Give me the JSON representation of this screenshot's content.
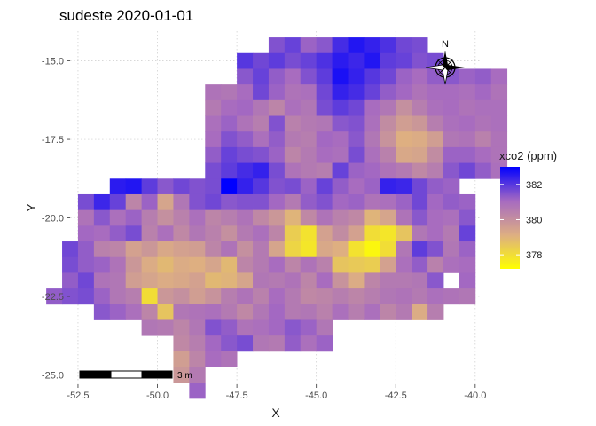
{
  "chart_data": {
    "type": "heatmap",
    "title": "sudeste 2020-01-01",
    "xlabel": "X",
    "ylabel": "Y",
    "xlim": [
      -52.75,
      -39.8
    ],
    "ylim": [
      -25.3,
      -14.05
    ],
    "x_ticks": [
      -52.5,
      -50.0,
      -47.5,
      -45.0,
      -42.5,
      -40.0
    ],
    "y_ticks": [
      -15.0,
      -17.5,
      -20.0,
      -22.5,
      -25.0
    ],
    "x_tick_labels": [
      "-52.5",
      "-50.0",
      "-47.5",
      "-45.0",
      "-42.5",
      "-40.0"
    ],
    "y_tick_labels": [
      "-15.0",
      "-17.5",
      "-20.0",
      "-22.5",
      "-25.0"
    ],
    "grid": true,
    "legend": {
      "title": "xco2 (ppm)",
      "position": "right",
      "ticks": [
        378,
        380,
        382
      ],
      "tick_labels": [
        "378",
        "380",
        "382"
      ],
      "range": [
        377.2,
        383.0
      ],
      "colors": [
        "#ffff00",
        "#ddae83",
        "#a66ac1",
        "#0000ff"
      ]
    },
    "cell_size": 0.5,
    "rows": [
      {
        "y": -14.5,
        "x0": -46.25,
        "values": [
          381.5,
          381.8,
          381.2,
          381.4,
          382.2,
          382.6,
          382.4,
          382.1,
          381.7,
          381.6
        ]
      },
      {
        "y": -15.0,
        "x0": -47.25,
        "values": [
          382.0,
          381.7,
          381.9,
          381.6,
          381.8,
          382.1,
          382.5,
          382.3,
          382.6,
          381.9,
          381.8,
          381.5,
          381.6
        ]
      },
      {
        "y": -15.5,
        "x0": -47.25,
        "values": [
          381.4,
          381.8,
          381.3,
          381.0,
          381.5,
          381.9,
          382.7,
          382.4,
          382.0,
          381.7,
          381.2,
          381.0,
          381.3,
          381.4,
          381.2,
          381.3,
          381.0
        ]
      },
      {
        "y": -16.0,
        "x0": -48.25,
        "values": [
          380.8,
          380.7,
          381.0,
          381.7,
          381.2,
          380.8,
          380.9,
          381.7,
          382.4,
          382.2,
          381.8,
          381.3,
          381.1,
          380.8,
          381.0,
          381.0,
          380.9,
          381.1,
          380.8
        ]
      },
      {
        "y": -16.5,
        "x0": -48.25,
        "values": [
          380.6,
          381.0,
          381.1,
          380.7,
          380.3,
          380.9,
          380.7,
          381.6,
          381.9,
          381.7,
          381.0,
          380.7,
          380.0,
          380.5,
          380.9,
          381.0,
          380.8,
          380.9,
          380.9
        ]
      },
      {
        "y": -17.0,
        "x0": -48.25,
        "values": [
          380.9,
          381.2,
          380.8,
          380.5,
          381.5,
          380.4,
          380.6,
          380.7,
          381.4,
          381.5,
          380.9,
          380.1,
          379.6,
          379.8,
          380.5,
          380.9,
          381.0,
          380.8,
          380.9
        ]
      },
      {
        "y": -17.5,
        "x0": -48.25,
        "values": [
          381.0,
          381.5,
          381.3,
          380.9,
          381.3,
          380.6,
          380.5,
          381.1,
          381.0,
          381.4,
          380.7,
          379.9,
          379.1,
          379.2,
          379.6,
          380.7,
          380.8,
          380.4,
          380.8
        ]
      },
      {
        "y": -18.0,
        "x0": -48.25,
        "values": [
          381.3,
          381.8,
          381.6,
          381.5,
          381.2,
          380.3,
          380.6,
          381.0,
          380.9,
          381.6,
          380.9,
          380.4,
          379.3,
          379.4,
          380.1,
          381.2,
          381.2,
          381.0,
          380.8
        ]
      },
      {
        "y": -18.5,
        "x0": -48.25,
        "values": [
          381.6,
          381.9,
          382.2,
          382.4,
          381.6,
          380.8,
          380.6,
          380.5,
          381.8,
          381.2,
          381.1,
          380.8,
          380.6,
          380.2,
          380.5,
          381.4,
          381.7,
          381.3,
          380.9
        ]
      },
      {
        "y": -19.0,
        "x0": -51.25,
        "values": [
          382.5,
          382.6,
          381.9,
          381.4,
          381.7,
          381.5,
          381.6,
          383.0,
          382.4,
          382.0,
          381.5,
          381.6,
          381.2,
          381.8,
          381.3,
          381.0,
          381.2,
          382.4,
          382.3,
          381.7,
          381.3,
          381.2
        ]
      },
      {
        "y": -19.5,
        "x0": -52.25,
        "values": [
          381.6,
          382.3,
          381.8,
          380.3,
          381.2,
          379.4,
          380.7,
          381.5,
          381.7,
          381.4,
          381.5,
          381.5,
          381.1,
          380.6,
          381.3,
          381.5,
          381.1,
          381.2,
          380.8,
          380.9,
          381.2,
          381.7,
          381.1,
          381.3,
          381.2
        ]
      },
      {
        "y": -20.0,
        "x0": -52.25,
        "values": [
          380.8,
          381.4,
          380.9,
          381.2,
          380.5,
          380.0,
          380.4,
          380.9,
          380.3,
          380.5,
          380.8,
          380.2,
          379.8,
          379.0,
          380.2,
          380.8,
          380.4,
          380.2,
          379.0,
          379.4,
          380.8,
          381.4,
          381.0,
          380.9,
          381.4
        ]
      },
      {
        "y": -20.5,
        "x0": -52.25,
        "values": [
          381.1,
          381.0,
          381.3,
          381.6,
          380.4,
          380.9,
          380.2,
          380.7,
          380.4,
          380.0,
          380.6,
          380.9,
          380.3,
          378.4,
          377.9,
          379.5,
          380.1,
          379.5,
          378.0,
          377.8,
          378.6,
          380.7,
          381.0,
          380.6,
          381.8
        ]
      },
      {
        "y": -21.0,
        "x0": -52.75,
        "values": [
          381.7,
          381.3,
          380.4,
          380.3,
          379.5,
          379.8,
          379.3,
          379.5,
          379.6,
          380.3,
          380.8,
          380.0,
          380.6,
          379.4,
          378.2,
          377.8,
          379.3,
          379.1,
          377.9,
          377.4,
          378.0,
          380.7,
          381.9,
          381.5,
          380.7,
          381.2
        ]
      },
      {
        "y": -21.5,
        "x0": -52.75,
        "values": [
          381.6,
          381.3,
          381.2,
          380.8,
          379.8,
          379.2,
          378.9,
          379.2,
          379.1,
          379.4,
          378.9,
          380.3,
          380.6,
          381.0,
          380.3,
          380.8,
          380.4,
          378.6,
          378.5,
          378.4,
          379.5,
          380.9,
          381.3,
          380.4,
          380.9,
          381.0
        ]
      },
      {
        "y": -22.0,
        "x0": -52.75,
        "values": [
          381.3,
          381.7,
          380.8,
          380.7,
          379.6,
          379.4,
          379.2,
          379.3,
          379.5,
          378.9,
          379.0,
          379.4,
          380.7,
          380.6,
          380.8,
          380.3,
          381.0,
          379.9,
          379.2,
          380.3,
          380.6,
          380.6,
          380.7,
          381.4,
          null,
          381.1
        ]
      },
      {
        "y": -22.5,
        "x0": -53.25,
        "values": [
          381.3,
          381.5,
          381.6,
          381.2,
          380.7,
          380.5,
          378.0,
          379.8,
          380.0,
          379.6,
          379.9,
          380.5,
          380.8,
          380.4,
          381.0,
          380.6,
          380.2,
          380.3,
          380.5,
          380.3,
          380.5,
          380.7,
          380.8,
          380.6,
          380.9,
          380.8,
          380.7
        ]
      },
      {
        "y": -23.0,
        "x0": -51.75,
        "values": [
          381.4,
          381.2,
          380.9,
          380.3,
          378.6,
          380.7,
          380.8,
          380.9,
          380.6,
          380.2,
          380.7,
          381.1,
          380.6,
          380.7,
          380.4,
          380.9,
          380.5,
          380.9,
          380.3,
          380.6,
          379.2,
          380.5
        ]
      },
      {
        "y": -23.5,
        "x0": -50.25,
        "values": [
          380.7,
          380.6,
          380.3,
          380.7,
          381.5,
          381.3,
          380.8,
          380.9,
          381.1,
          381.4,
          381.2,
          380.7
        ]
      },
      {
        "y": -24.0,
        "x0": -49.25,
        "values": [
          380.2,
          380.5,
          381.1,
          381.4,
          381.6,
          380.7,
          380.6,
          381.3,
          380.9,
          381.2
        ]
      },
      {
        "y": -24.5,
        "x0": -49.25,
        "values": [
          379.6,
          380.3,
          381.0,
          380.8
        ]
      },
      {
        "y": -25.0,
        "x0": -49.25,
        "values": [
          379.8,
          380.6
        ]
      },
      {
        "y": -25.5,
        "x0": -48.75,
        "values": [
          381.2
        ]
      }
    ],
    "annotations": {
      "north_arrow": "N",
      "scale_bar": "3 m"
    }
  }
}
